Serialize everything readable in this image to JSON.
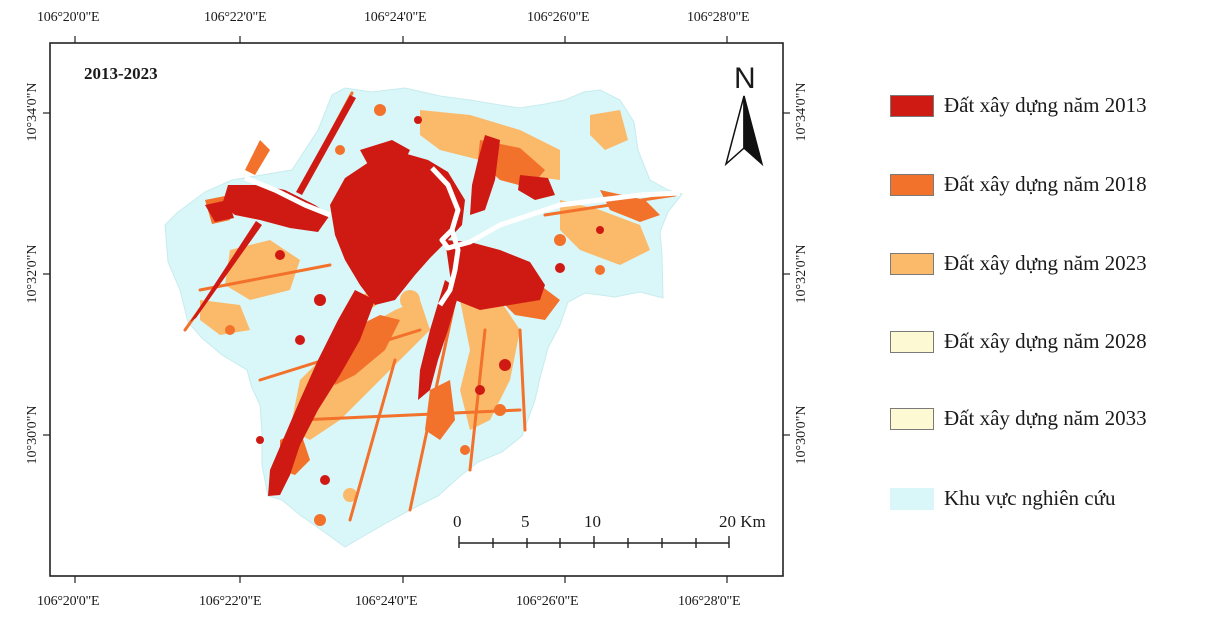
{
  "map": {
    "period_label": "2013-2023",
    "north_label": "N",
    "coords_top": [
      "106°20'0\"E",
      "106°22'0\"E",
      "106°24'0\"E",
      "106°26'0\"E",
      "106°28'0\"E"
    ],
    "coords_bottom": [
      "106°20'0\"E",
      "106°22'0\"E",
      "106°24'0\"E",
      "106°26'0\"E",
      "106°28'0\"E"
    ],
    "coords_left": [
      "10°34'0\"N",
      "10°32'0\"N",
      "10°30'0\"N"
    ],
    "coords_right": [
      "10°34'0\"N",
      "10°32'0\"N",
      "10°30'0\"N"
    ],
    "scale_labels": [
      "0",
      "5",
      "10",
      "20 Km"
    ],
    "colors": {
      "study_area": "#d9f6f8",
      "built_2013": "#cf1a14",
      "built_2018": "#f2712b",
      "built_2023": "#fbb96a",
      "built_2028": "#fdf7cf",
      "built_2033": "#fdf7cf"
    }
  },
  "legend": {
    "items": [
      {
        "label": "Đất xây dựng năm 2013",
        "color": "#cf1a14"
      },
      {
        "label": "Đất xây dựng năm 2018",
        "color": "#f2712b"
      },
      {
        "label": "Đất xây dựng năm 2023",
        "color": "#fbb96a"
      },
      {
        "label": "Đất xây dựng năm 2028",
        "color": "#fdf9d3"
      },
      {
        "label": "Đất xây dựng năm 2033",
        "color": "#fdf9d3"
      },
      {
        "label": "Khu vực nghiên cứu",
        "color": "#d9f6f8"
      }
    ]
  }
}
